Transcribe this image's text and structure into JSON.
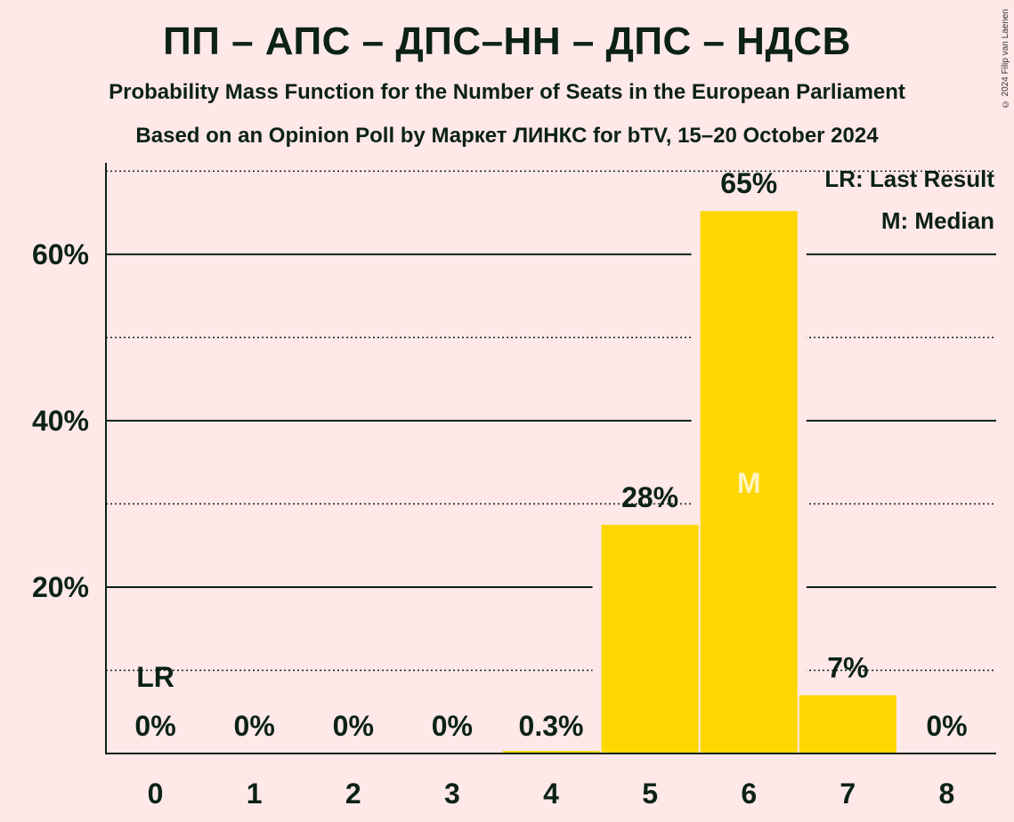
{
  "title": "ПП – АПС – ДПС–НН – ДПС – НДСВ",
  "subtitle": "Probability Mass Function for the Number of Seats in the European Parliament",
  "subtitle2": "Based on an Opinion Poll by Маркет ЛИНКС for bTV, 15–20 October 2024",
  "copyright": "© 2024 Filip van Laenen",
  "legend": {
    "last_result": "LR: Last Result",
    "median": "M: Median"
  },
  "colors": {
    "bar": "#FFD700",
    "background": "#FFE8E8",
    "text": "#0b2215"
  },
  "chart_data": {
    "type": "bar",
    "categories": [
      "0",
      "1",
      "2",
      "3",
      "4",
      "5",
      "6",
      "7",
      "8"
    ],
    "values": [
      0,
      0,
      0,
      0,
      0.3,
      28,
      65,
      7,
      0
    ],
    "exact_values": [
      0,
      0,
      0,
      0,
      0.3,
      27.5,
      65.2,
      7.0,
      0
    ],
    "value_labels": [
      "0%",
      "0%",
      "0%",
      "0%",
      "0.3%",
      "28%",
      "65%",
      "7%",
      "0%"
    ],
    "yticks": [
      20,
      40,
      60
    ],
    "ytick_labels": [
      "20%",
      "40%",
      "60%"
    ],
    "ylim": [
      0,
      71
    ],
    "last_result_category": "0",
    "last_result_marker": "LR",
    "median_category": "6",
    "median_marker": "M",
    "grid": true,
    "legend_position": "top-right"
  }
}
